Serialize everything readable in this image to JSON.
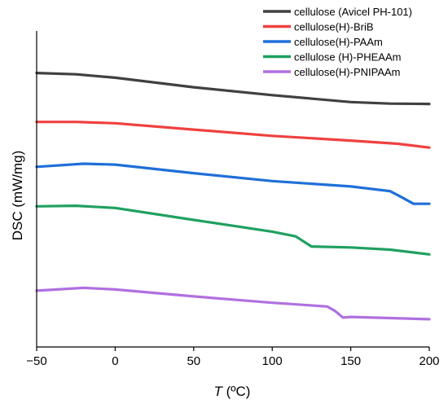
{
  "chart_data": {
    "type": "line",
    "xlabel_italic": "T",
    "xlabel_rest": " (ºC)",
    "ylabel": "DSC (mW/mg)",
    "xlim": [
      -50,
      200
    ],
    "ylim": [
      0,
      100
    ],
    "xticks": [
      -50,
      0,
      50,
      100,
      150,
      200
    ],
    "y_ticks_labeled": false,
    "grid": false,
    "legend_position": "top-right",
    "series": [
      {
        "name": "cellulose (Avicel PH-101)",
        "color": "#404040",
        "points": [
          [
            -50,
            86.7
          ],
          [
            -25,
            86.3
          ],
          [
            0,
            85.2
          ],
          [
            50,
            82.2
          ],
          [
            100,
            79.7
          ],
          [
            150,
            77.5
          ],
          [
            175,
            77.0
          ],
          [
            200,
            76.9
          ]
        ]
      },
      {
        "name": "cellulose(H)-BriB",
        "color": "#f04040",
        "points": [
          [
            -50,
            71.2
          ],
          [
            -25,
            71.2
          ],
          [
            0,
            70.8
          ],
          [
            50,
            68.8
          ],
          [
            100,
            66.8
          ],
          [
            150,
            65.3
          ],
          [
            180,
            64.3
          ],
          [
            200,
            63.1
          ]
        ]
      },
      {
        "name": "cellulose(H)-PAAm",
        "color": "#1f6fd8",
        "points": [
          [
            -50,
            57.0
          ],
          [
            -20,
            58.0
          ],
          [
            0,
            57.7
          ],
          [
            50,
            55.0
          ],
          [
            100,
            52.5
          ],
          [
            150,
            50.8
          ],
          [
            175,
            49.3
          ],
          [
            182,
            47.5
          ],
          [
            190,
            45.3
          ],
          [
            200,
            45.3
          ]
        ]
      },
      {
        "name": "cellulose (H)-PHEAAm",
        "color": "#20a060",
        "points": [
          [
            -50,
            44.5
          ],
          [
            -25,
            44.7
          ],
          [
            0,
            44.0
          ],
          [
            50,
            40.2
          ],
          [
            100,
            36.5
          ],
          [
            115,
            35.0
          ],
          [
            125,
            31.8
          ],
          [
            150,
            31.5
          ],
          [
            175,
            30.8
          ],
          [
            200,
            29.3
          ]
        ]
      },
      {
        "name": "cellulose(H)-PNIPAAm",
        "color": "#b070e0",
        "points": [
          [
            -50,
            17.8
          ],
          [
            -20,
            18.7
          ],
          [
            0,
            18.2
          ],
          [
            50,
            16.0
          ],
          [
            100,
            14.0
          ],
          [
            135,
            12.8
          ],
          [
            140,
            11.4
          ],
          [
            145,
            9.3
          ],
          [
            150,
            9.5
          ],
          [
            200,
            8.8
          ]
        ]
      }
    ]
  }
}
